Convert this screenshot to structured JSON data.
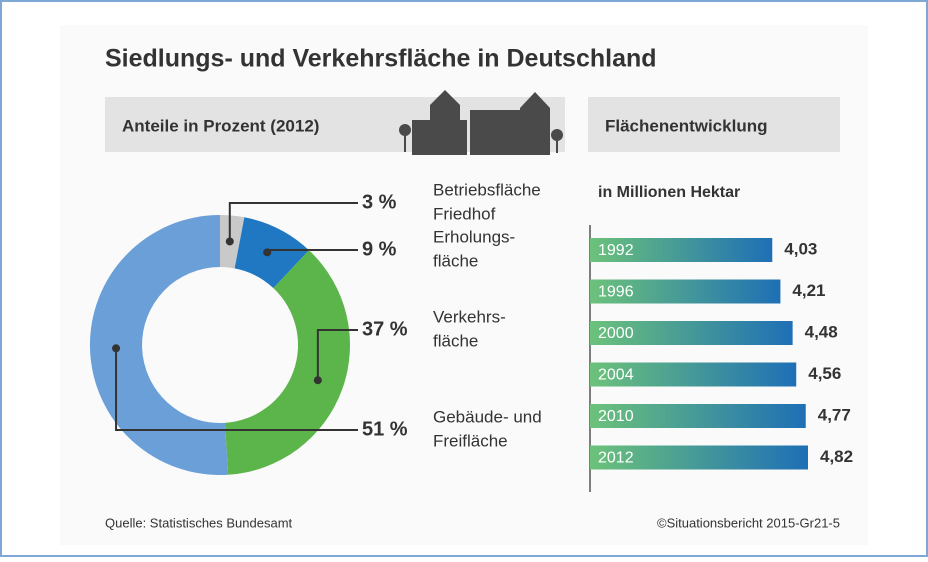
{
  "title": "Siedlungs- und Verkehrsfläche in Deutschland",
  "source": "Quelle: Statistisches Bundesamt",
  "credit": "©Situationsbericht 2015-Gr21-5",
  "chart_data": [
    {
      "type": "donut",
      "title": "Anteile in Prozent (2012)",
      "categories": [
        [
          "Betriebsfläche",
          "Friedhof"
        ],
        [
          "Erholungs-",
          "fläche"
        ],
        [
          "Verkehrs-",
          "fläche"
        ],
        [
          "Gebäude- und",
          "Freifläche"
        ]
      ],
      "values": [
        3,
        9,
        37,
        51
      ],
      "value_labels": [
        "3 %",
        "9 %",
        "37 %",
        "51 %"
      ],
      "colors": [
        "#c9c9c9",
        "#1f78c1",
        "#5cb54a",
        "#6b9fd8"
      ]
    },
    {
      "type": "bar",
      "title": "Flächenentwicklung",
      "subtitle": "in Millionen Hektar",
      "categories": [
        "1992",
        "1996",
        "2000",
        "2004",
        "2010",
        "2012"
      ],
      "values": [
        4.03,
        4.21,
        4.48,
        4.56,
        4.77,
        4.82
      ],
      "value_labels": [
        "4,03",
        "4,21",
        "4,48",
        "4,56",
        "4,77",
        "4,82"
      ],
      "color_start": "#6cc27a",
      "color_end": "#1e6fb6"
    }
  ]
}
